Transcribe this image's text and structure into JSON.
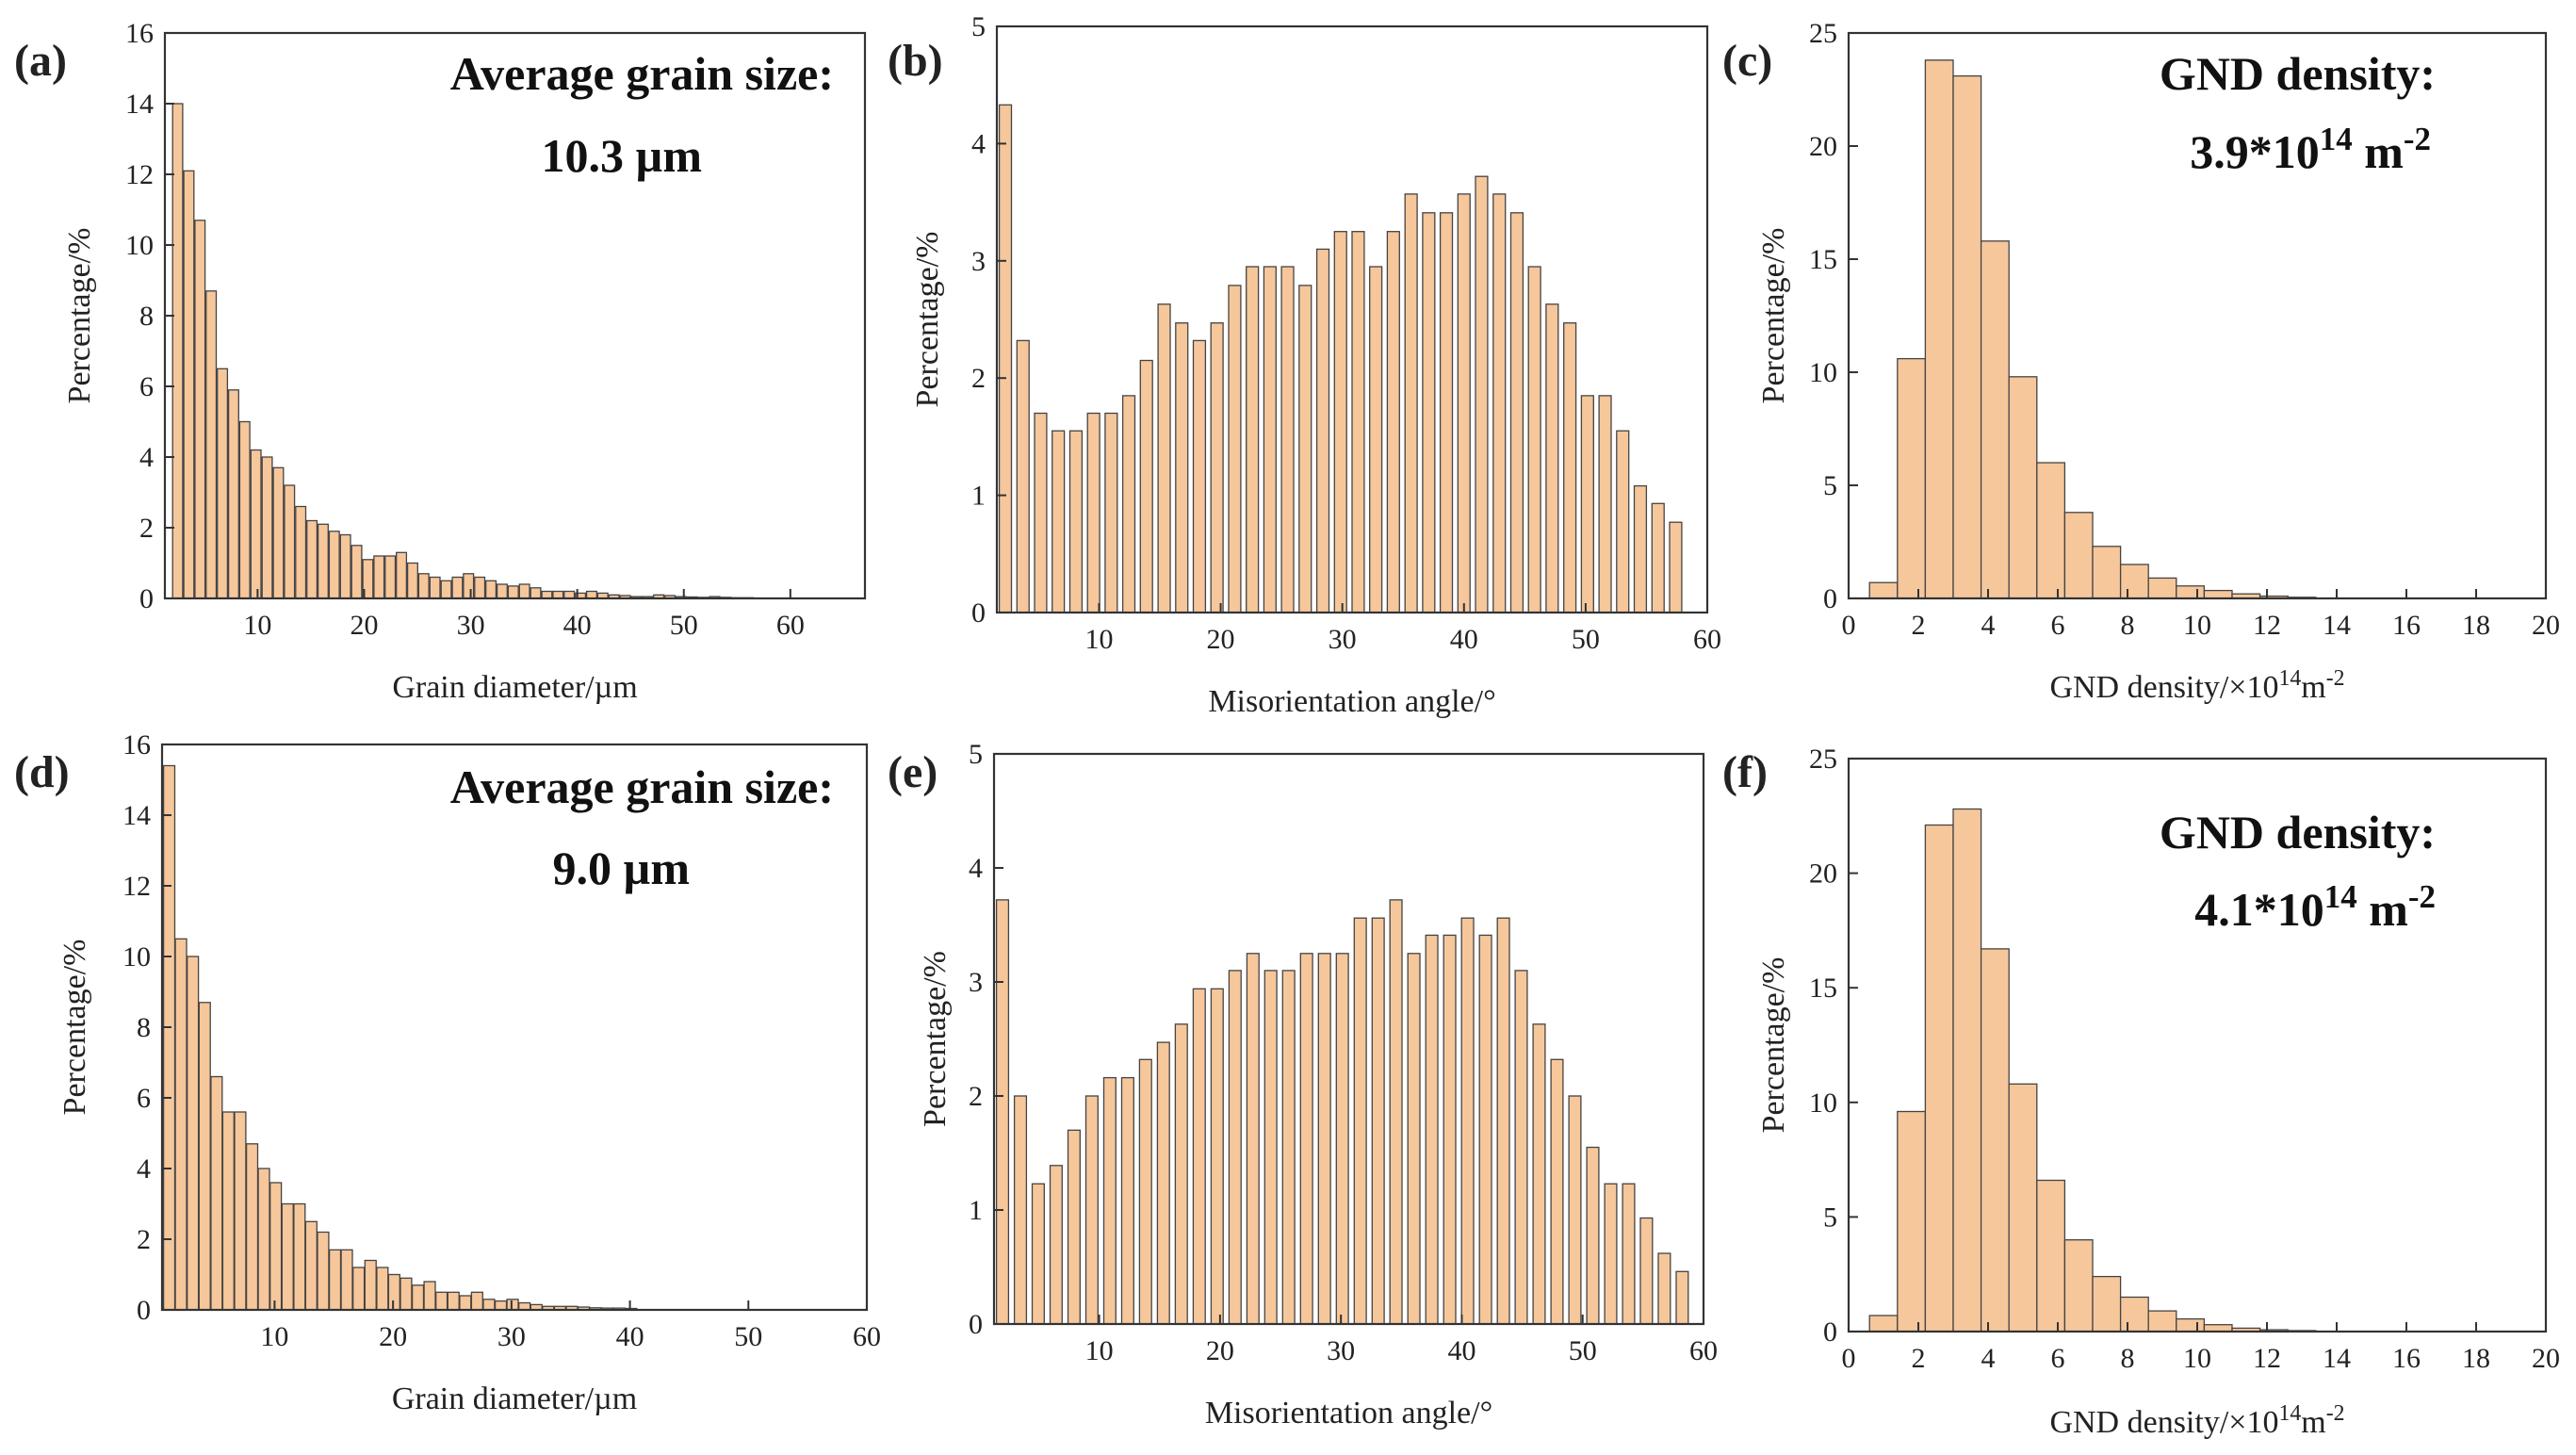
{
  "chart_data": [
    {
      "panel": "(a)",
      "type": "bar",
      "xlabel": "Grain diameter/µm",
      "ylabel": "Percentage/%",
      "annotation": [
        "Average grain size:",
        "10.3 µm"
      ],
      "xlim": [
        1.3,
        67
      ],
      "ylim": [
        0,
        16
      ],
      "xticks": [
        10,
        20,
        30,
        40,
        50,
        60
      ],
      "yticks": [
        0,
        2,
        4,
        6,
        8,
        10,
        12,
        14,
        16
      ],
      "bar_width": 0.95,
      "x_start": 2.5,
      "x_step": 1.05,
      "values": [
        14.0,
        12.1,
        10.7,
        8.7,
        6.5,
        5.9,
        5.0,
        4.2,
        4.0,
        3.7,
        3.2,
        2.6,
        2.2,
        2.1,
        1.9,
        1.8,
        1.5,
        1.1,
        1.2,
        1.2,
        1.3,
        1.0,
        0.7,
        0.6,
        0.5,
        0.6,
        0.7,
        0.6,
        0.5,
        0.4,
        0.35,
        0.4,
        0.3,
        0.2,
        0.2,
        0.2,
        0.15,
        0.2,
        0.15,
        0.1,
        0.08,
        0.05,
        0.05,
        0.1,
        0.08,
        0.05,
        0.04,
        0.03,
        0.05,
        0.03,
        0.02,
        0.02
      ]
    },
    {
      "panel": "(b)",
      "type": "bar",
      "xlabel": "Misorientation angle/°",
      "ylabel": "Percentage/%",
      "xlim": [
        1.6,
        60
      ],
      "ylim": [
        0,
        5
      ],
      "xticks": [
        10,
        20,
        30,
        40,
        50,
        60
      ],
      "yticks": [
        0,
        1,
        2,
        3,
        4,
        5
      ],
      "bar_width": 1.0,
      "x_start": 2.3,
      "x_step": 1.45,
      "values": [
        4.33,
        2.32,
        1.7,
        1.55,
        1.55,
        1.7,
        1.7,
        1.85,
        2.15,
        2.63,
        2.47,
        2.32,
        2.47,
        2.79,
        2.95,
        2.95,
        2.95,
        2.79,
        3.1,
        3.25,
        3.25,
        2.95,
        3.25,
        3.57,
        3.41,
        3.41,
        3.57,
        3.72,
        3.57,
        3.41,
        2.95,
        2.63,
        2.47,
        1.85,
        1.85,
        1.55,
        1.08,
        0.93,
        0.77
      ]
    },
    {
      "panel": "(c)",
      "type": "bar",
      "xlabel": "GND density/×10¹⁴m⁻²",
      "ylabel": "Percentage/%",
      "annotation": [
        "GND density:",
        "3.9*10¹⁴ m⁻²"
      ],
      "xlim": [
        0,
        20
      ],
      "ylim": [
        0,
        25
      ],
      "xticks": [
        0,
        2,
        4,
        6,
        8,
        10,
        12,
        14,
        16,
        18,
        20
      ],
      "yticks": [
        0,
        5,
        10,
        15,
        20,
        25
      ],
      "bar_width": 0.8,
      "x_start": 1.0,
      "x_step": 0.8,
      "values": [
        0.7,
        10.6,
        23.8,
        23.1,
        15.8,
        9.8,
        6.0,
        3.8,
        2.3,
        1.5,
        0.9,
        0.55,
        0.35,
        0.2,
        0.1,
        0.05
      ]
    },
    {
      "panel": "(d)",
      "type": "bar",
      "xlabel": "Grain diameter/µm",
      "ylabel": "Percentage/%",
      "annotation": [
        "Average grain size:",
        "9.0 µm"
      ],
      "xlim": [
        0.5,
        60
      ],
      "ylim": [
        0,
        16
      ],
      "xticks": [
        10,
        20,
        30,
        40,
        50,
        60
      ],
      "yticks": [
        0,
        2,
        4,
        6,
        8,
        10,
        12,
        14,
        16
      ],
      "bar_width": 0.95,
      "x_start": 1.1,
      "x_step": 1.0,
      "values": [
        15.4,
        10.5,
        10.0,
        8.7,
        6.6,
        5.6,
        5.6,
        4.7,
        4.0,
        3.6,
        3.0,
        3.0,
        2.5,
        2.2,
        1.7,
        1.7,
        1.2,
        1.4,
        1.2,
        1.0,
        0.9,
        0.7,
        0.8,
        0.5,
        0.5,
        0.4,
        0.5,
        0.3,
        0.25,
        0.3,
        0.2,
        0.15,
        0.1,
        0.1,
        0.1,
        0.08,
        0.06,
        0.05,
        0.05,
        0.04
      ]
    },
    {
      "panel": "(e)",
      "type": "bar",
      "xlabel": "Misorientation angle/°",
      "ylabel": "Percentage/%",
      "xlim": [
        1.3,
        60
      ],
      "ylim": [
        0,
        5
      ],
      "xticks": [
        10,
        20,
        30,
        40,
        50,
        60
      ],
      "yticks": [
        0,
        1,
        2,
        3,
        4,
        5
      ],
      "bar_width": 1.0,
      "x_start": 2.0,
      "x_step": 1.48,
      "values": [
        3.72,
        2.0,
        1.23,
        1.39,
        1.7,
        2.0,
        2.16,
        2.16,
        2.32,
        2.47,
        2.63,
        2.94,
        2.94,
        3.1,
        3.25,
        3.1,
        3.1,
        3.25,
        3.25,
        3.25,
        3.56,
        3.56,
        3.72,
        3.25,
        3.41,
        3.41,
        3.56,
        3.41,
        3.56,
        3.1,
        2.63,
        2.32,
        2.0,
        1.55,
        1.23,
        1.23,
        0.93,
        0.62,
        0.46
      ]
    },
    {
      "panel": "(f)",
      "type": "bar",
      "xlabel": "GND density/×10¹⁴m⁻²",
      "ylabel": "Percentage/%",
      "annotation": [
        "GND density:",
        "4.1*10¹⁴ m⁻²"
      ],
      "xlim": [
        0,
        20
      ],
      "ylim": [
        0,
        25
      ],
      "xticks": [
        0,
        2,
        4,
        6,
        8,
        10,
        12,
        14,
        16,
        18,
        20
      ],
      "yticks": [
        0,
        5,
        10,
        15,
        20,
        25
      ],
      "bar_width": 0.8,
      "x_start": 1.0,
      "x_step": 0.8,
      "values": [
        0.7,
        9.6,
        22.1,
        22.8,
        16.7,
        10.8,
        6.6,
        4.0,
        2.4,
        1.5,
        0.9,
        0.55,
        0.3,
        0.15,
        0.08,
        0.04
      ]
    }
  ]
}
